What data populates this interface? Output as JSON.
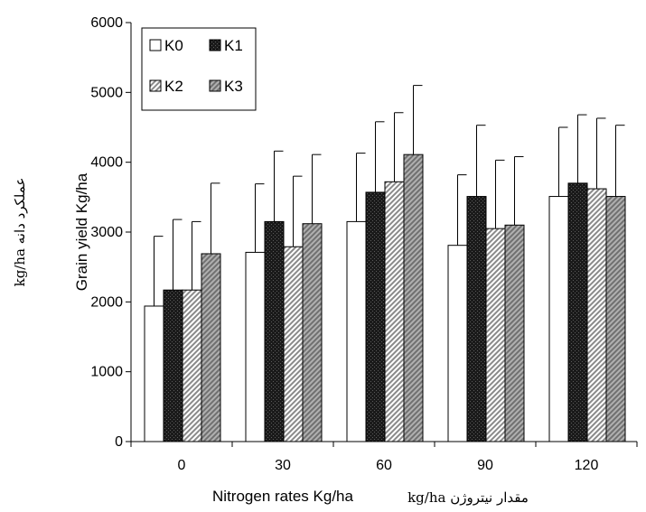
{
  "chart_data": {
    "type": "bar",
    "categories": [
      "0",
      "30",
      "60",
      "90",
      "120"
    ],
    "series": [
      {
        "name": "K0",
        "values": [
          1940,
          2710,
          3150,
          2810,
          3510
        ],
        "errors": [
          1000,
          980,
          980,
          1010,
          990
        ]
      },
      {
        "name": "K1",
        "values": [
          2170,
          3150,
          3570,
          3510,
          3700
        ],
        "errors": [
          1010,
          1010,
          1010,
          1020,
          980
        ]
      },
      {
        "name": "K2",
        "values": [
          2170,
          2790,
          3720,
          3050,
          3620
        ],
        "errors": [
          980,
          1010,
          990,
          980,
          1010
        ]
      },
      {
        "name": "K3",
        "values": [
          2690,
          3120,
          4110,
          3100,
          3510
        ],
        "errors": [
          1010,
          990,
          990,
          980,
          1020
        ]
      }
    ],
    "xlabel": "Nitrogen rates Kg/ha",
    "xlabel_fa": "kg/ha  مقدار نیتروژن",
    "ylabel": "Grain yield Kg/ha",
    "ylabel_fa": "kg/ha   عملکرد دانه",
    "ylim": [
      0,
      6000
    ],
    "yticks": [
      "0",
      "1000",
      "2000",
      "3000",
      "4000",
      "5000",
      "6000"
    ],
    "grid": false,
    "legend_position": "top-left",
    "fills": {
      "K0": "#ffffff",
      "K1": "#1a1a1a",
      "K2": "#c9c9c9",
      "K3": "#8e8e8e"
    }
  }
}
